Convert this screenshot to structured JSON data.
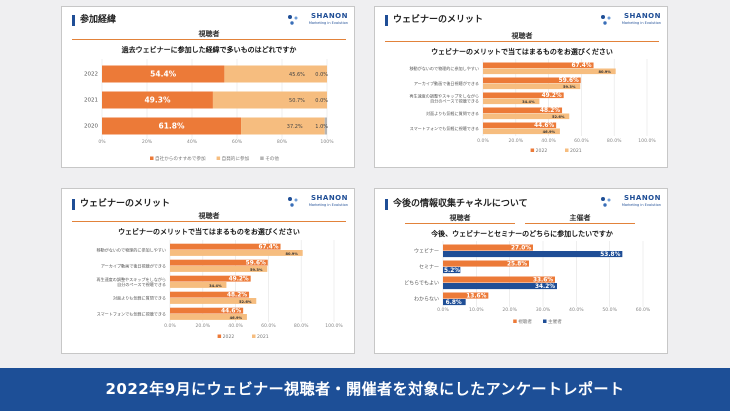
{
  "banner": "2022年9月にウェビナー視聴者・開催者を対象にしたアンケートレポート",
  "logo": {
    "text": "SHANON",
    "sub": "Marketing in Evolution",
    "color": "#1f4e96"
  },
  "colors": {
    "orange": "#ec7a38",
    "light_orange": "#f6bd7f",
    "gray": "#b5b5b5",
    "navy": "#1f4e96",
    "accent_line": "#e2823a"
  },
  "panels": {
    "p1": {
      "title": "参加経緯",
      "viewer_label": "視聴者",
      "question": "過去ウェビナーに参加した経緯で多いものはどれですか"
    },
    "p2": {
      "title": "ウェビナーのメリット",
      "viewer_label": "視聴者",
      "question": "ウェビナーのメリットで当てはまるものをお選びください"
    },
    "p3": {
      "title": "ウェビナーのメリット",
      "viewer_label": "視聴者",
      "question": "ウェビナーのメリットで当てはまるものをお選びください"
    },
    "p4": {
      "title": "今後の情報収集チャネルについて",
      "viewer_label": "視聴者",
      "host_label": "主催者",
      "question": "今後、ウェビナーとセミナーのどちらに参加したいですか"
    }
  },
  "chart_data": [
    {
      "id": "participation",
      "type": "bar",
      "orientation": "horizontal-stacked",
      "categories": [
        "2022",
        "2021",
        "2020"
      ],
      "series": [
        {
          "name": "自社からのすすめで参加",
          "values": [
            54.4,
            49.3,
            61.8
          ],
          "labels": [
            "54.4%",
            "49.3%",
            "61.8%"
          ],
          "color": "#ec7a38"
        },
        {
          "name": "自発的に参加",
          "values": [
            45.6,
            50.7,
            37.2
          ],
          "labels": [
            "45.6%",
            "50.7%",
            "37.2%"
          ],
          "color": "#f6bd7f"
        },
        {
          "name": "その他",
          "values": [
            0.0,
            0.0,
            1.0
          ],
          "labels": [
            "0.0%",
            "0.0%",
            "1.0%"
          ],
          "color": "#b5b5b5"
        }
      ],
      "xticks": [
        "0%",
        "20%",
        "40%",
        "60%",
        "80%",
        "100%"
      ],
      "xlim": [
        0,
        100
      ],
      "legend": "bottom"
    },
    {
      "id": "merit-a",
      "type": "bar",
      "orientation": "horizontal-grouped",
      "categories": [
        "移動がないので物理的に参加しやすい",
        "アーカイブ動画で後日視聴ができる",
        "再生速度の調整やスキップをしながら自分のペースで視聴できる",
        "対面よりも気軽に質問できる",
        "スマートフォンでも気軽に視聴できる"
      ],
      "series": [
        {
          "name": "2022",
          "values": [
            67.4,
            59.6,
            49.2,
            48.2,
            44.6
          ],
          "labels": [
            "67.4%",
            "59.6%",
            "49.2%",
            "48.2%",
            "44.6%"
          ],
          "color": "#ec7a38"
        },
        {
          "name": "2021",
          "values": [
            80.9,
            59.3,
            34.4,
            52.6,
            46.9
          ],
          "labels": [
            "80.9%",
            "59.3%",
            "34.4%",
            "52.6%",
            "46.9%"
          ],
          "color": "#f6bd7f"
        }
      ],
      "xticks": [
        "0.0%",
        "20.0%",
        "40.0%",
        "60.0%",
        "80.0%",
        "100.0%"
      ],
      "xlim": [
        0,
        100
      ],
      "legend": "bottom"
    },
    {
      "id": "merit-b",
      "type": "bar",
      "orientation": "horizontal-grouped",
      "categories": [
        "移動がないので物理的に参加しやすい",
        "アーカイブ動画で後日視聴ができる",
        "再生速度の調整やスキップをしながら自分のペースで視聴できる",
        "対面よりも気軽に質問できる",
        "スマートフォンでも気軽に視聴できる"
      ],
      "series": [
        {
          "name": "2022",
          "values": [
            67.4,
            59.6,
            49.2,
            48.2,
            44.6
          ],
          "labels": [
            "67.4%",
            "59.6%",
            "49.2%",
            "48.2%",
            "44.6%"
          ],
          "color": "#ec7a38"
        },
        {
          "name": "2021",
          "values": [
            80.9,
            59.3,
            34.4,
            52.6,
            46.9
          ],
          "labels": [
            "80.9%",
            "59.3%",
            "34.4%",
            "52.6%",
            "46.9%"
          ],
          "color": "#f6bd7f"
        }
      ],
      "xticks": [
        "0.0%",
        "20.0%",
        "40.0%",
        "60.0%",
        "80.0%",
        "100.0%"
      ],
      "xlim": [
        0,
        100
      ],
      "legend": "bottom"
    },
    {
      "id": "channel",
      "type": "bar",
      "orientation": "horizontal-grouped",
      "categories": [
        "ウェビナー",
        "セミナー",
        "どちらでもよい",
        "わからない"
      ],
      "series": [
        {
          "name": "視聴者",
          "values": [
            27.0,
            25.8,
            33.6,
            13.6
          ],
          "labels": [
            "27.0%",
            "25.8%",
            "33.6%",
            "13.6%"
          ],
          "color": "#ec7a38"
        },
        {
          "name": "主催者",
          "values": [
            53.8,
            5.2,
            34.2,
            6.8
          ],
          "labels": [
            "53.8%",
            "5.2%",
            "34.2%",
            "6.8%"
          ],
          "color": "#1f4e96"
        }
      ],
      "xticks": [
        "0.0%",
        "10.0%",
        "20.0%",
        "30.0%",
        "40.0%",
        "50.0%",
        "60.0%"
      ],
      "xlim": [
        0,
        60
      ],
      "legend": "bottom"
    }
  ]
}
